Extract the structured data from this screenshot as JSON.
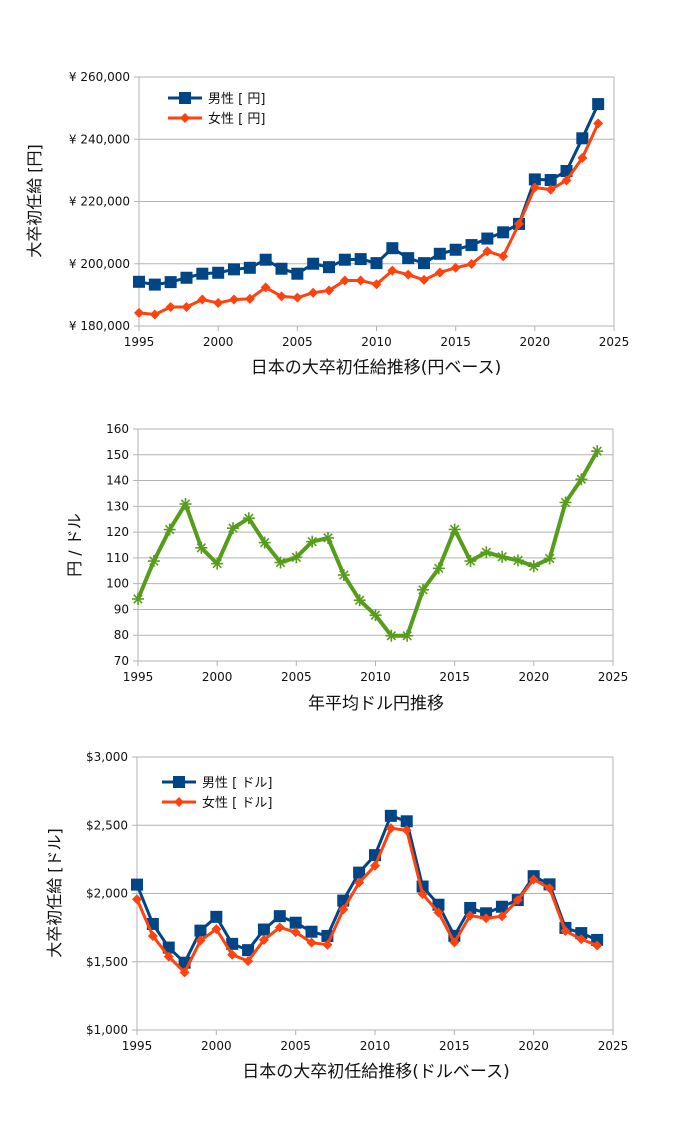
{
  "chart_data": [
    {
      "id": "yen",
      "type": "line",
      "title": "",
      "xlabel": "日本の大卒初任給推移(円ベース)",
      "ylabel": "大卒初任給 [円]",
      "x": [
        1995,
        1996,
        1997,
        1998,
        1999,
        2000,
        2001,
        2002,
        2003,
        2004,
        2005,
        2006,
        2007,
        2008,
        2009,
        2010,
        2011,
        2012,
        2013,
        2014,
        2015,
        2016,
        2017,
        2018,
        2019,
        2020,
        2021,
        2022,
        2023,
        2024
      ],
      "xlim": [
        1995,
        2025
      ],
      "xticks": [
        1995,
        2000,
        2005,
        2010,
        2015,
        2020,
        2025
      ],
      "ylim": [
        180000,
        260000
      ],
      "yticks": [
        180000,
        200000,
        220000,
        240000,
        260000
      ],
      "ytick_labels": [
        "¥ 180,000",
        "¥ 200,000",
        "¥ 220,000",
        "¥ 240,000",
        "¥ 260,000"
      ],
      "grid": true,
      "legend_position": "top-left",
      "series": [
        {
          "name": "男性 [ 円]",
          "color": "#004586",
          "marker": "square",
          "values": [
            194200,
            193300,
            194100,
            195500,
            196800,
            197100,
            198200,
            198700,
            201300,
            198400,
            196800,
            200000,
            198900,
            201300,
            201500,
            200200,
            205000,
            201800,
            200200,
            203200,
            204500,
            206000,
            208100,
            210100,
            212800,
            227100,
            226900,
            229800,
            240300,
            251300
          ]
        },
        {
          "name": "女性 [ 円]",
          "color": "#ff420e",
          "marker": "diamond",
          "values": [
            184200,
            183700,
            186100,
            186100,
            188500,
            187400,
            188500,
            188700,
            192400,
            189500,
            189100,
            190700,
            191400,
            194600,
            194600,
            193400,
            197800,
            196500,
            194800,
            197200,
            198700,
            199900,
            204000,
            202400,
            212800,
            224500,
            223800,
            226800,
            234000,
            245100
          ]
        }
      ]
    },
    {
      "id": "rate",
      "type": "line",
      "title": "",
      "xlabel": "年平均ドル円推移",
      "ylabel": "円 / ドル",
      "x": [
        1995,
        1996,
        1997,
        1998,
        1999,
        2000,
        2001,
        2002,
        2003,
        2004,
        2005,
        2006,
        2007,
        2008,
        2009,
        2010,
        2011,
        2012,
        2013,
        2014,
        2015,
        2016,
        2017,
        2018,
        2019,
        2020,
        2021,
        2022,
        2023,
        2024
      ],
      "xlim": [
        1995,
        2025
      ],
      "xticks": [
        1995,
        2000,
        2005,
        2010,
        2015,
        2020,
        2025
      ],
      "ylim": [
        70,
        160
      ],
      "yticks": [
        70,
        80,
        90,
        100,
        110,
        120,
        130,
        140,
        150,
        160
      ],
      "ytick_labels": [
        "70",
        "80",
        "90",
        "100",
        "110",
        "120",
        "130",
        "140",
        "150",
        "160"
      ],
      "grid": true,
      "legend_position": "none",
      "series": [
        {
          "name": "円/ドル",
          "color": "#579d1c",
          "marker": "asterisk",
          "values": [
            94.06,
            108.78,
            120.99,
            130.91,
            113.91,
            107.77,
            121.53,
            125.39,
            115.93,
            108.19,
            110.22,
            116.3,
            117.75,
            103.36,
            93.57,
            87.78,
            79.81,
            79.79,
            97.6,
            105.94,
            121.04,
            108.79,
            112.17,
            110.42,
            109.01,
            106.77,
            109.75,
            131.5,
            140.49,
            151.4
          ]
        }
      ]
    },
    {
      "id": "dollar",
      "type": "line",
      "title": "",
      "xlabel": "日本の大卒初任給推移(ドルベース)",
      "ylabel": "大卒初任給 [ドル]",
      "x": [
        1995,
        1996,
        1997,
        1998,
        1999,
        2000,
        2001,
        2002,
        2003,
        2004,
        2005,
        2006,
        2007,
        2008,
        2009,
        2010,
        2011,
        2012,
        2013,
        2014,
        2015,
        2016,
        2017,
        2018,
        2019,
        2020,
        2021,
        2022,
        2023,
        2024
      ],
      "xlim": [
        1995,
        2025
      ],
      "xticks": [
        1995,
        2000,
        2005,
        2010,
        2015,
        2020,
        2025
      ],
      "ylim": [
        1000,
        3000
      ],
      "yticks": [
        1000,
        1500,
        2000,
        2500,
        3000
      ],
      "ytick_labels": [
        "$1,000",
        "$1,500",
        "$2,000",
        "$2,500",
        "$3,000"
      ],
      "grid": true,
      "legend_position": "top-left",
      "series": [
        {
          "name": "男性 [ ドル]",
          "color": "#004586",
          "marker": "square",
          "values": [
            2065,
            1777,
            1604,
            1493,
            1728,
            1829,
            1631,
            1585,
            1736,
            1834,
            1786,
            1720,
            1689,
            1948,
            2153,
            2281,
            2569,
            2529,
            2051,
            1918,
            1690,
            1894,
            1855,
            1903,
            1952,
            2127,
            2067,
            1748,
            1710,
            1660
          ]
        },
        {
          "name": "女性 [ ドル]",
          "color": "#ff420e",
          "marker": "diamond",
          "values": [
            1958,
            1689,
            1538,
            1422,
            1655,
            1739,
            1551,
            1505,
            1660,
            1752,
            1716,
            1640,
            1625,
            1883,
            2080,
            2203,
            2478,
            2463,
            1996,
            1861,
            1642,
            1838,
            1819,
            1833,
            1952,
            2103,
            2039,
            1725,
            1666,
            1619
          ]
        }
      ]
    }
  ]
}
